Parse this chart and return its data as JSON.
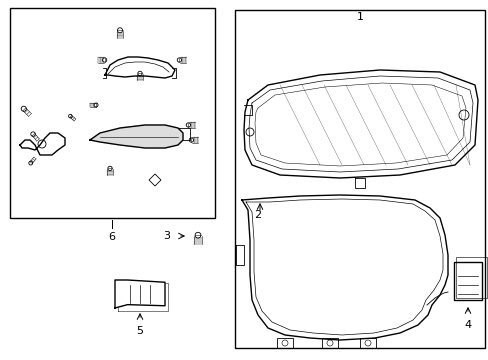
{
  "background_color": "#ffffff",
  "line_color": "#000000",
  "lw": 1.0,
  "tlw": 0.6,
  "fig_width": 4.89,
  "fig_height": 3.6,
  "dpi": 100,
  "label_fontsize": 8
}
